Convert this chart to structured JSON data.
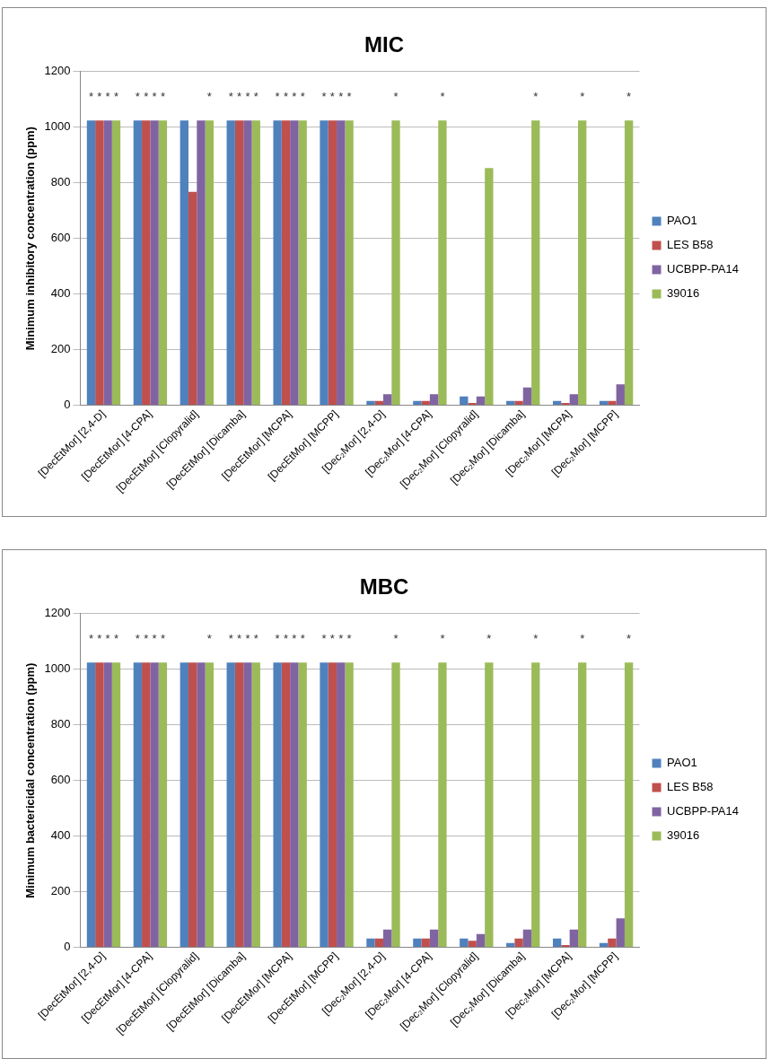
{
  "chart_data": [
    {
      "type": "bar",
      "title": "MIC",
      "ylabel": "Minimum inhibitory concentration (ppm)",
      "categories": [
        "[DecEtMor] [2,4-D]",
        "[DecEtMor] [4-CPA]",
        "[DecEtMor] [Clopyralid]",
        "[DecEtMor] [Dicamba]",
        "[DecEtMor] [MCPA]",
        "[DecEtMor] [MCPP]",
        "[Dec₂Mor] [2,4-D]",
        "[Dec₂Mor] [4-CPA]",
        "[Dec₂Mor] [Clopyralid]",
        "[Dec₂Mor] [Dicamba]",
        "[Dec₂Mor] [MCPA]",
        "[Dec₂Mor] [MCPP]"
      ],
      "series": [
        {
          "name": "PAO1",
          "color": "#4f81bd",
          "values": [
            1024,
            1024,
            1024,
            1024,
            1024,
            1024,
            16,
            16,
            32,
            16,
            16,
            16
          ],
          "value_labels": [
            "*",
            "*",
            null,
            "*",
            "*",
            "*",
            null,
            null,
            null,
            null,
            null,
            null
          ]
        },
        {
          "name": "LES B58",
          "color": "#c0504d",
          "values": [
            1024,
            1024,
            768,
            1024,
            1024,
            1024,
            16,
            16,
            8,
            16,
            8,
            16
          ],
          "value_labels": [
            "*",
            "*",
            null,
            "*",
            "*",
            "*",
            null,
            null,
            null,
            null,
            null,
            null
          ]
        },
        {
          "name": "UCBPP-PA14",
          "color": "#8064a2",
          "values": [
            1024,
            1024,
            1024,
            1024,
            1024,
            1024,
            40,
            40,
            32,
            64,
            40,
            75
          ],
          "value_labels": [
            "*",
            "*",
            null,
            "*",
            "*",
            "*",
            null,
            null,
            null,
            null,
            null,
            null
          ]
        },
        {
          "name": "39016",
          "color": "#9bbb59",
          "values": [
            1024,
            1024,
            1024,
            1024,
            1024,
            1024,
            1024,
            1024,
            853,
            1024,
            1024,
            1024
          ],
          "value_labels": [
            "*",
            "*",
            "*",
            "*",
            "*",
            "*",
            "*",
            "*",
            null,
            "*",
            "*",
            "*"
          ]
        }
      ],
      "ylim": [
        0,
        1200
      ],
      "yticks": [
        0,
        200,
        400,
        600,
        800,
        1000,
        1200
      ],
      "grid": "y",
      "legend": "right"
    },
    {
      "type": "bar",
      "title": "MBC",
      "ylabel": "Minimum bactericidal concentration (ppm)",
      "categories": [
        "[DecEtMor] [2,4-D]",
        "[DecEtMor] [4-CPA]",
        "[DecEtMor] [Clopyralid]",
        "[DecEtMor] [Dicamba]",
        "[DecEtMor] [MCPA]",
        "[DecEtMor] [MCPP]",
        "[Dec₂Mor] [2,4-D]",
        "[Dec₂Mor] [4-CPA]",
        "[Dec₂Mor] [Clopyralid]",
        "[Dec₂Mor] [Dicamba]",
        "[Dec₂Mor] [MCPA]",
        "[Dec₂Mor] [MCPP]"
      ],
      "series": [
        {
          "name": "PAO1",
          "color": "#4f81bd",
          "values": [
            1024,
            1024,
            1024,
            1024,
            1024,
            1024,
            32,
            32,
            32,
            16,
            32,
            16
          ],
          "value_labels": [
            "*",
            "*",
            null,
            "*",
            "*",
            "*",
            null,
            null,
            null,
            null,
            null,
            null
          ]
        },
        {
          "name": "LES B58",
          "color": "#c0504d",
          "values": [
            1024,
            1024,
            1024,
            1024,
            1024,
            1024,
            32,
            32,
            24,
            32,
            8,
            32
          ],
          "value_labels": [
            "*",
            "*",
            null,
            "*",
            "*",
            "*",
            null,
            null,
            null,
            null,
            null,
            null
          ]
        },
        {
          "name": "UCBPP-PA14",
          "color": "#8064a2",
          "values": [
            1024,
            1024,
            1024,
            1024,
            1024,
            1024,
            64,
            64,
            48,
            64,
            64,
            104
          ],
          "value_labels": [
            "*",
            "*",
            null,
            "*",
            "*",
            "*",
            null,
            null,
            null,
            null,
            null,
            null
          ]
        },
        {
          "name": "39016",
          "color": "#9bbb59",
          "values": [
            1024,
            1024,
            1024,
            1024,
            1024,
            1024,
            1024,
            1024,
            1024,
            1024,
            1024,
            1024
          ],
          "value_labels": [
            "*",
            "*",
            "*",
            "*",
            "*",
            "*",
            "*",
            "*",
            "*",
            "*",
            "*",
            "*"
          ]
        }
      ],
      "ylim": [
        0,
        1200
      ],
      "yticks": [
        0,
        200,
        400,
        600,
        800,
        1000,
        1200
      ],
      "grid": "y",
      "legend": "right"
    }
  ]
}
